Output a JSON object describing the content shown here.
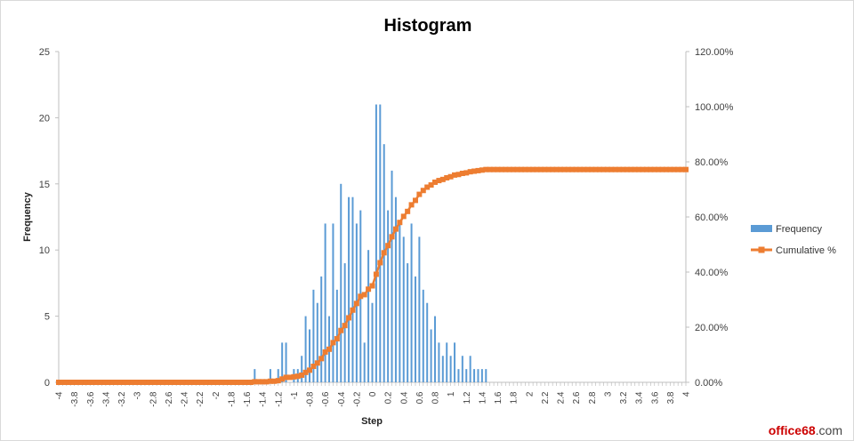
{
  "chart_data": {
    "type": "bar",
    "title": "Histogram",
    "xlabel": "Step",
    "ylabel": "Frequency",
    "ylim": [
      0,
      25
    ],
    "y_ticks": [
      "0",
      "5",
      "10",
      "15",
      "20",
      "25"
    ],
    "y2lim": [
      0,
      1.2
    ],
    "y2_ticks": [
      "0.00%",
      "20.00%",
      "40.00%",
      "60.00%",
      "80.00%",
      "100.00%",
      "120.00%"
    ],
    "x_ticks": [
      "-4",
      "-3.8",
      "-3.6",
      "-3.4",
      "-3.2",
      "-3",
      "-2.8",
      "-2.6",
      "-2.4",
      "-2.2",
      "-2",
      "-1.8",
      "-1.6",
      "-1.4",
      "-1.2",
      "-1",
      "-0.8",
      "-0.6",
      "-0.4",
      "-0.2",
      "0",
      "0.2",
      "0.4",
      "0.6",
      "0.8",
      "1",
      "1.2",
      "1.4",
      "1.6",
      "1.8",
      "2",
      "2.2",
      "2.4",
      "2.6",
      "2.8",
      "3",
      "3.2",
      "3.4",
      "3.6",
      "3.8",
      "4"
    ],
    "legend_position": "right",
    "series": [
      {
        "name": "Frequency",
        "type": "bar",
        "color": "#5b9bd5",
        "x": [
          -1.5,
          -1.45,
          -1.4,
          -1.35,
          -1.3,
          -1.25,
          -1.2,
          -1.15,
          -1.1,
          -1.05,
          -1,
          -0.95,
          -0.9,
          -0.85,
          -0.8,
          -0.75,
          -0.7,
          -0.65,
          -0.6,
          -0.55,
          -0.5,
          -0.45,
          -0.4,
          -0.35,
          -0.3,
          -0.25,
          -0.2,
          -0.15,
          -0.1,
          -0.05,
          0,
          0.05,
          0.1,
          0.15,
          0.2,
          0.25,
          0.3,
          0.35,
          0.4,
          0.45,
          0.5,
          0.55,
          0.6,
          0.65,
          0.7,
          0.75,
          0.8,
          0.85,
          0.9,
          0.95,
          1,
          1.05,
          1.1,
          1.15,
          1.2,
          1.25,
          1.3,
          1.35,
          1.4,
          1.45
        ],
        "values": [
          1,
          0,
          0,
          0,
          1,
          0,
          1,
          3,
          3,
          0,
          1,
          1,
          2,
          5,
          4,
          7,
          6,
          8,
          12,
          5,
          12,
          7,
          15,
          9,
          14,
          14,
          12,
          13,
          3,
          10,
          6,
          21,
          21,
          18,
          13,
          16,
          14,
          12,
          11,
          9,
          12,
          8,
          11,
          7,
          6,
          4,
          5,
          3,
          2,
          3,
          2,
          3,
          1,
          2,
          1,
          2,
          1,
          1,
          1,
          1
        ]
      },
      {
        "name": "Cumulative %",
        "type": "line",
        "color": "#ed7d31",
        "marker": "square",
        "x": [
          -4,
          -3.95,
          -3.9,
          -3.85,
          -3.8,
          -3.75,
          -3.7,
          -3.65,
          -3.6,
          -3.55,
          -3.5,
          -3.45,
          -3.4,
          -3.35,
          -3.3,
          -3.25,
          -3.2,
          -3.15,
          -3.1,
          -3.05,
          -3,
          -2.95,
          -2.9,
          -2.85,
          -2.8,
          -2.75,
          -2.7,
          -2.65,
          -2.6,
          -2.55,
          -2.5,
          -2.45,
          -2.4,
          -2.35,
          -2.3,
          -2.25,
          -2.2,
          -2.15,
          -2.1,
          -2.05,
          -2,
          -1.95,
          -1.9,
          -1.85,
          -1.8,
          -1.75,
          -1.7,
          -1.65,
          -1.6,
          -1.55,
          -1.5,
          -1.45,
          -1.4,
          -1.35,
          -1.3,
          -1.25,
          -1.2,
          -1.15,
          -1.1,
          -1.05,
          -1,
          -0.95,
          -0.9,
          -0.85,
          -0.8,
          -0.75,
          -0.7,
          -0.65,
          -0.6,
          -0.55,
          -0.5,
          -0.45,
          -0.4,
          -0.35,
          -0.3,
          -0.25,
          -0.2,
          -0.15,
          -0.1,
          -0.05,
          0,
          0.05,
          0.1,
          0.15,
          0.2,
          0.25,
          0.3,
          0.35,
          0.4,
          0.45,
          0.5,
          0.55,
          0.6,
          0.65,
          0.7,
          0.75,
          0.8,
          0.85,
          0.9,
          0.95,
          1,
          1.05,
          1.1,
          1.15,
          1.2,
          1.25,
          1.3,
          1.35,
          1.4,
          1.45,
          1.5,
          1.55,
          1.6,
          1.65,
          1.7,
          1.75,
          1.8,
          1.85,
          1.9,
          1.95,
          2,
          2.05,
          2.1,
          2.15,
          2.2,
          2.25,
          2.3,
          2.35,
          2.4,
          2.45,
          2.5,
          2.55,
          2.6,
          2.65,
          2.7,
          2.75,
          2.8,
          2.85,
          2.9,
          2.95,
          3,
          3.05,
          3.1,
          3.15,
          3.2,
          3.25,
          3.3,
          3.35,
          3.4,
          3.45,
          3.5,
          3.55,
          3.6,
          3.65,
          3.7,
          3.75,
          3.8,
          3.85,
          3.9,
          3.95,
          4
        ],
        "values": [
          0,
          0,
          0,
          0,
          0,
          0,
          0,
          0,
          0,
          0,
          0,
          0,
          0,
          0,
          0,
          0,
          0,
          0,
          0,
          0,
          0,
          0,
          0,
          0,
          0,
          0,
          0,
          0,
          0,
          0,
          0,
          0,
          0,
          0,
          0,
          0,
          0,
          0,
          0,
          0,
          0,
          0,
          0,
          0,
          0,
          0,
          0,
          0,
          0,
          0,
          0.002,
          0.002,
          0.002,
          0.002,
          0.004,
          0.004,
          0.006,
          0.012,
          0.018,
          0.018,
          0.02,
          0.022,
          0.026,
          0.036,
          0.044,
          0.058,
          0.07,
          0.086,
          0.11,
          0.12,
          0.144,
          0.158,
          0.188,
          0.206,
          0.234,
          0.262,
          0.286,
          0.312,
          0.318,
          0.338,
          0.35,
          0.392,
          0.434,
          0.47,
          0.496,
          0.528,
          0.556,
          0.58,
          0.602,
          0.62,
          0.644,
          0.66,
          0.682,
          0.696,
          0.708,
          0.716,
          0.726,
          0.732,
          0.736,
          0.742,
          0.746,
          0.752,
          0.754,
          0.758,
          0.76,
          0.764,
          0.766,
          0.768,
          0.77,
          0.772,
          0.772,
          0.772,
          0.772,
          0.772,
          0.772,
          0.772,
          0.772,
          0.772,
          0.772,
          0.772,
          0.772,
          0.772,
          0.772,
          0.772,
          0.772,
          0.772,
          0.772,
          0.772,
          0.772,
          0.772,
          0.772,
          0.772,
          0.772,
          0.772,
          0.772,
          0.772,
          0.772,
          0.772,
          0.772,
          0.772,
          0.772,
          0.772,
          0.772,
          0.772,
          0.772,
          0.772,
          0.772,
          0.772,
          0.772,
          0.772,
          0.772,
          0.772,
          0.772,
          0.772,
          0.772,
          0.772,
          0.772,
          0.772,
          0.772,
          0.772,
          0.772
        ]
      }
    ]
  },
  "watermark": {
    "brand": "office68",
    "domain": ".com"
  }
}
